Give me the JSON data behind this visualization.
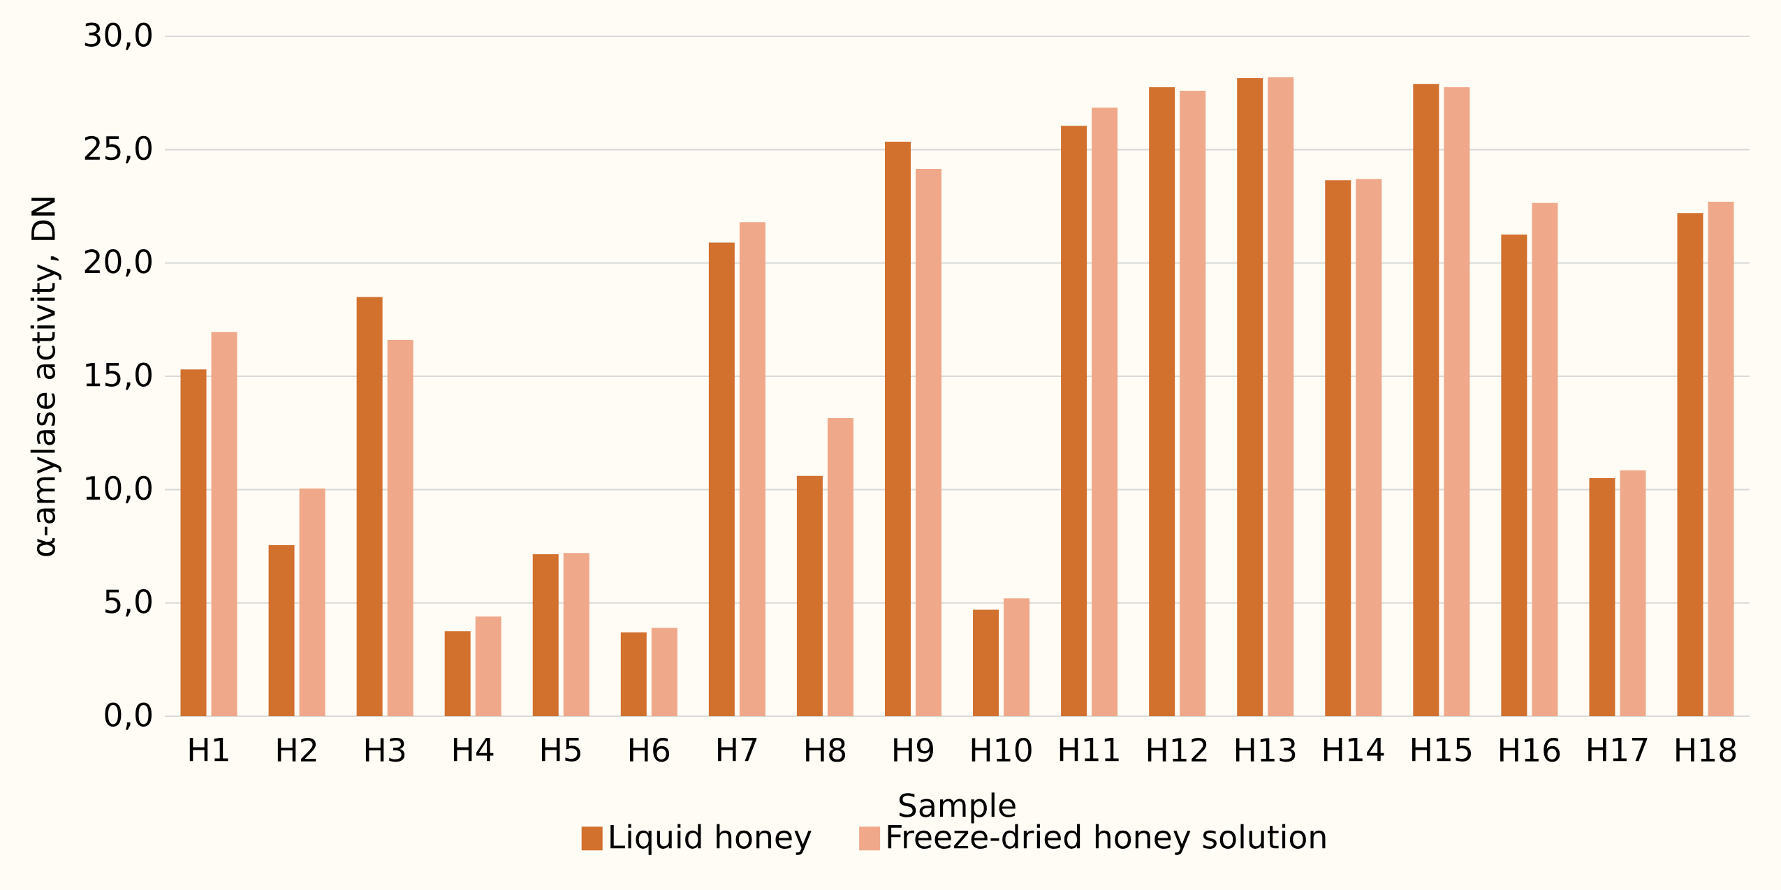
{
  "chart_data": {
    "type": "bar",
    "xlabel": "Sample",
    "ylabel": "α-amylase activity, DN",
    "categories": [
      "H1",
      "H2",
      "H3",
      "H4",
      "H5",
      "H6",
      "H7",
      "H8",
      "H9",
      "H10",
      "H11",
      "H12",
      "H13",
      "H14",
      "H15",
      "H16",
      "H17",
      "H18"
    ],
    "series": [
      {
        "name": "Liquid honey",
        "color": "#d2702e",
        "values": [
          15.3,
          7.55,
          18.5,
          3.75,
          7.15,
          3.7,
          20.9,
          10.6,
          25.35,
          4.7,
          26.05,
          27.75,
          28.15,
          23.65,
          27.9,
          21.25,
          10.5,
          22.2
        ]
      },
      {
        "name": "Freeze-dried honey solution",
        "color": "#f0a88a",
        "values": [
          16.95,
          10.05,
          16.6,
          4.4,
          7.2,
          3.9,
          21.8,
          13.15,
          24.15,
          5.2,
          26.85,
          27.6,
          28.2,
          23.7,
          27.75,
          22.65,
          10.85,
          22.7
        ]
      }
    ],
    "ylim": [
      0,
      30
    ],
    "yticks": [
      {
        "value": 0,
        "label": "0,0"
      },
      {
        "value": 5,
        "label": "5,0"
      },
      {
        "value": 10,
        "label": "10,0"
      },
      {
        "value": 15,
        "label": "15,0"
      },
      {
        "value": 20,
        "label": "20,0"
      },
      {
        "value": 25,
        "label": "25,0"
      },
      {
        "value": 30,
        "label": "30,0"
      }
    ],
    "grid": "y",
    "legend": "bottom"
  }
}
